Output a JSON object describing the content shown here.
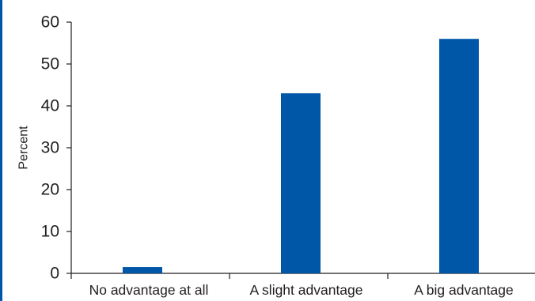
{
  "colors": {
    "bar": "#0057a8",
    "axis": "#231f20",
    "left_edge": "#0057a8"
  },
  "chart_data": {
    "type": "bar",
    "title": "",
    "xlabel": "",
    "ylabel": "Percent",
    "categories": [
      "No advantage at all",
      "A slight advantage",
      "A big advantage"
    ],
    "values": [
      1.5,
      43,
      56
    ],
    "ylim": [
      0,
      60
    ],
    "yticks": [
      0,
      10,
      20,
      30,
      40,
      50,
      60
    ],
    "grid": false,
    "legend": "none"
  }
}
